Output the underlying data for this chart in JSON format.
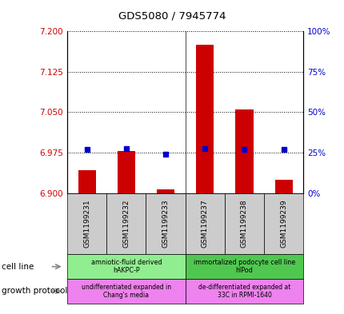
{
  "title": "GDS5080 / 7945774",
  "samples": [
    "GSM1199231",
    "GSM1199232",
    "GSM1199233",
    "GSM1199237",
    "GSM1199238",
    "GSM1199239"
  ],
  "transformed_count": [
    6.942,
    6.978,
    6.907,
    7.175,
    7.055,
    6.925
  ],
  "percentile_rank": [
    27,
    27.5,
    24,
    27.5,
    27,
    27
  ],
  "ylim_left": [
    6.9,
    7.2
  ],
  "yticks_left": [
    6.9,
    6.975,
    7.05,
    7.125,
    7.2
  ],
  "ylim_right": [
    0,
    100
  ],
  "yticks_right": [
    0,
    25,
    50,
    75,
    100
  ],
  "bar_color": "#cc0000",
  "dot_color": "#0000cc",
  "bar_base": 6.9,
  "cell_line_groups": [
    {
      "label": "amniotic-fluid derived\nhAKPC-P",
      "start": 0,
      "end": 3,
      "color": "#90ee90"
    },
    {
      "label": "immortalized podocyte cell line\nhIPod",
      "start": 3,
      "end": 6,
      "color": "#50c850"
    }
  ],
  "growth_protocol_groups": [
    {
      "label": "undifferentiated expanded in\nChang's media",
      "start": 0,
      "end": 3,
      "color": "#ee82ee"
    },
    {
      "label": "de-differentiated expanded at\n33C in RPMI-1640",
      "start": 3,
      "end": 6,
      "color": "#ee82ee"
    }
  ],
  "tick_label_color_left": "#cc0000",
  "tick_label_color_right": "#0000cc",
  "xticklabel_bg": "#cccccc"
}
